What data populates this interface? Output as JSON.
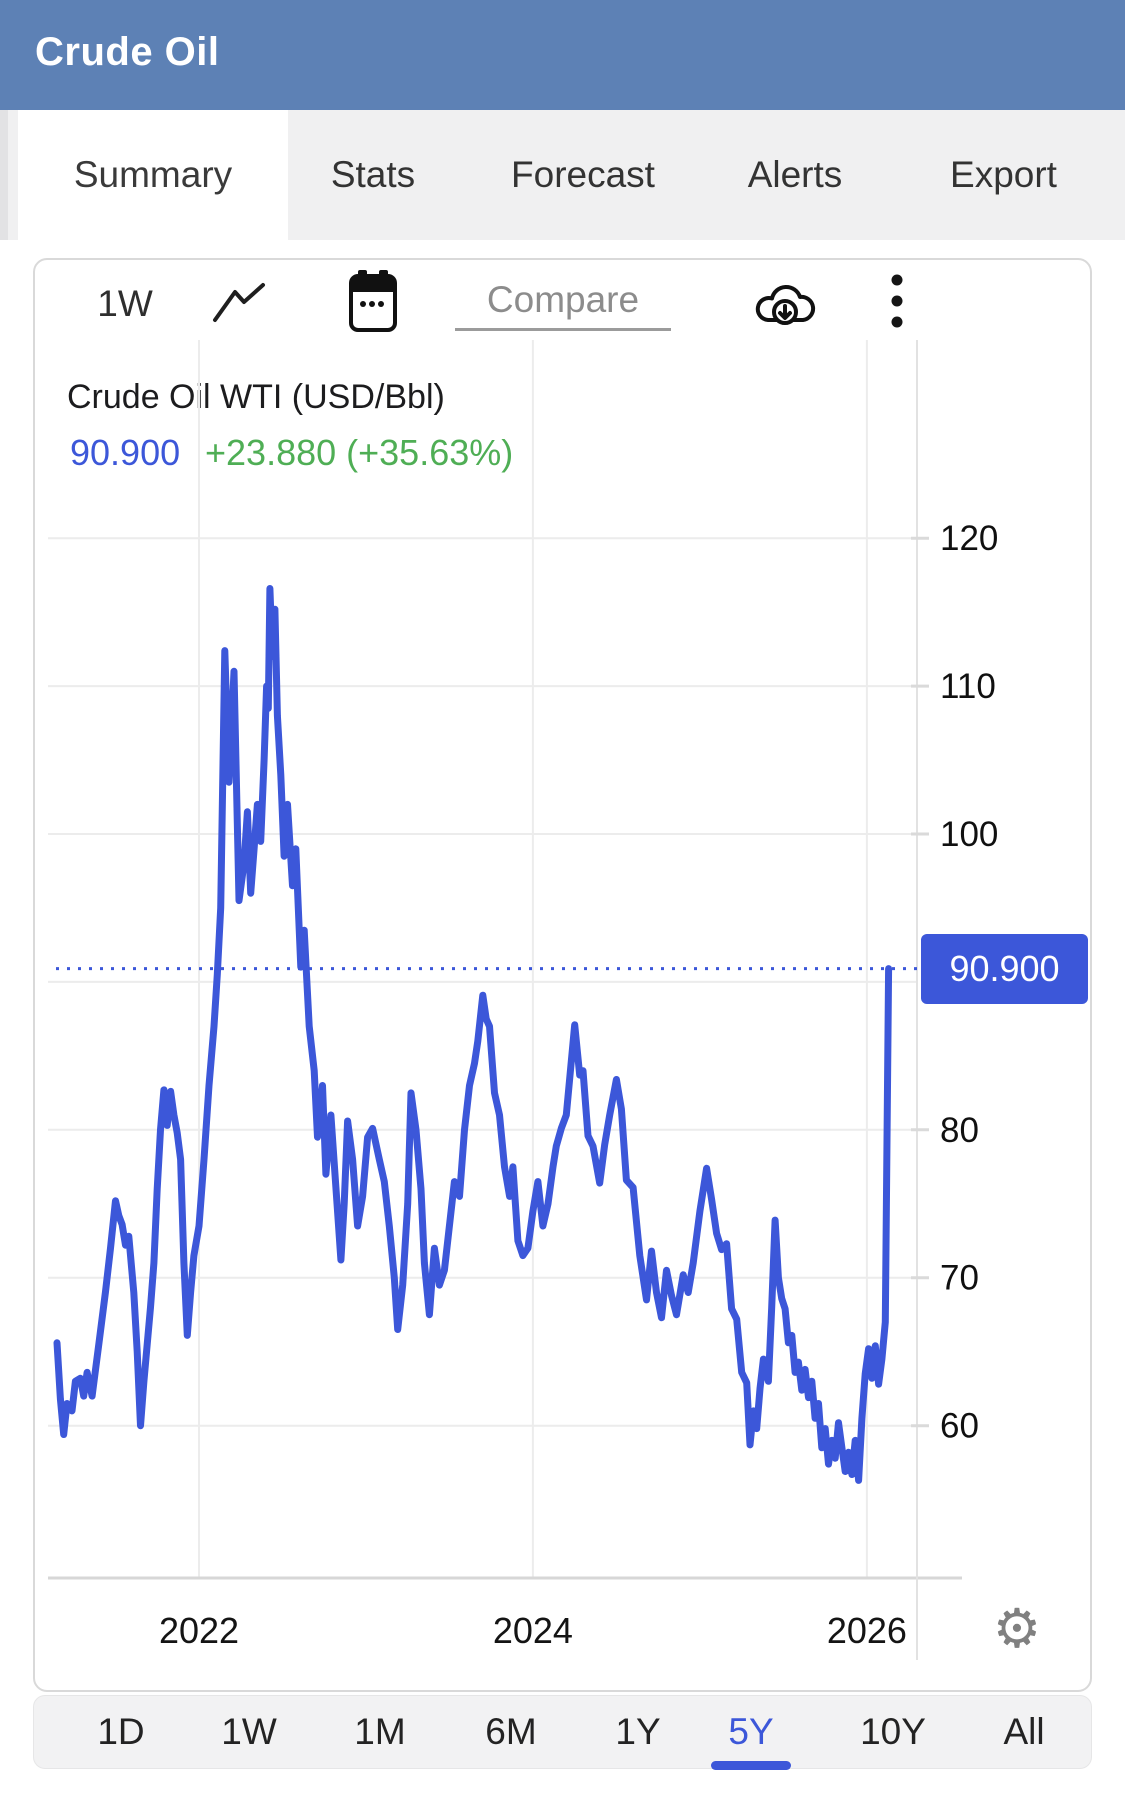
{
  "header": {
    "title": "Crude Oil",
    "bg_color": "#5d81b5"
  },
  "tabs": {
    "items": [
      {
        "label": "Summary",
        "active": true
      },
      {
        "label": "Stats",
        "active": false
      },
      {
        "label": "Forecast",
        "active": false
      },
      {
        "label": "Alerts",
        "active": false
      },
      {
        "label": "Export",
        "active": false
      }
    ]
  },
  "toolbar": {
    "interval": "1W",
    "compare_label": "Compare",
    "icons": [
      "line-chart-icon",
      "calendar-icon",
      "cloud-download-icon",
      "kebab-menu-icon"
    ]
  },
  "quote": {
    "title": "Crude Oil WTI (USD/Bbl)",
    "last": "90.900",
    "change": "+23.880 (+35.63%)",
    "last_color": "#3c57d9",
    "change_color": "#4fae55"
  },
  "chart_data": {
    "type": "line",
    "title": "Crude Oil WTI (USD/Bbl)",
    "line_color": "#3c57d9",
    "grid": "on",
    "legend": "none",
    "xlim": [
      2021.096,
      2026.3
    ],
    "ylim": [
      49.7,
      133.4
    ],
    "x_ticks": [
      2022,
      2024,
      2026
    ],
    "y_ticks": [
      120,
      110,
      100,
      80,
      70,
      60
    ],
    "y_gridlines": [
      120,
      110,
      100,
      90,
      80,
      70,
      60
    ],
    "last_value": 90.9,
    "last_label": "90.900",
    "change_value": 23.88,
    "change_pct": 35.63,
    "series": [
      {
        "name": "Crude Oil WTI",
        "x": [
          2021.15,
          2021.17,
          2021.19,
          2021.21,
          2021.24,
          2021.26,
          2021.29,
          2021.31,
          2021.33,
          2021.36,
          2021.4,
          2021.44,
          2021.47,
          2021.5,
          2021.52,
          2021.54,
          2021.56,
          2021.58,
          2021.61,
          2021.63,
          2021.65,
          2021.67,
          2021.69,
          2021.71,
          2021.73,
          2021.75,
          2021.77,
          2021.79,
          2021.81,
          2021.83,
          2021.85,
          2021.87,
          2021.89,
          2021.91,
          2021.93,
          2021.95,
          2021.97,
          2022.0,
          2022.03,
          2022.06,
          2022.09,
          2022.11,
          2022.13,
          2022.155,
          2022.18,
          2022.21,
          2022.24,
          2022.27,
          2022.29,
          2022.31,
          2022.33,
          2022.35,
          2022.37,
          2022.39,
          2022.405,
          2022.415,
          2022.425,
          2022.44,
          2022.455,
          2022.47,
          2022.49,
          2022.51,
          2022.53,
          2022.56,
          2022.58,
          2022.61,
          2022.63,
          2022.66,
          2022.69,
          2022.71,
          2022.74,
          2022.76,
          2022.79,
          2022.82,
          2022.85,
          2022.87,
          2022.89,
          2022.92,
          2022.95,
          2022.98,
          2023.01,
          2023.04,
          2023.08,
          2023.11,
          2023.14,
          2023.17,
          2023.19,
          2023.22,
          2023.25,
          2023.27,
          2023.3,
          2023.33,
          2023.35,
          2023.38,
          2023.41,
          2023.44,
          2023.47,
          2023.5,
          2023.53,
          2023.56,
          2023.59,
          2023.62,
          2023.65,
          2023.67,
          2023.7,
          2023.72,
          2023.74,
          2023.77,
          2023.8,
          2023.83,
          2023.86,
          2023.88,
          2023.91,
          2023.94,
          2023.97,
          2024.0,
          2024.03,
          2024.06,
          2024.09,
          2024.12,
          2024.14,
          2024.17,
          2024.2,
          2024.25,
          2024.28,
          2024.3,
          2024.33,
          2024.36,
          2024.4,
          2024.43,
          2024.46,
          2024.5,
          2024.53,
          2024.56,
          2024.6,
          2024.64,
          2024.68,
          2024.71,
          2024.74,
          2024.77,
          2024.8,
          2024.83,
          2024.86,
          2024.9,
          2024.93,
          2024.96,
          2025.0,
          2025.04,
          2025.07,
          2025.1,
          2025.13,
          2025.16,
          2025.19,
          2025.22,
          2025.25,
          2025.28,
          2025.3,
          2025.32,
          2025.34,
          2025.36,
          2025.38,
          2025.41,
          2025.43,
          2025.45,
          2025.47,
          2025.49,
          2025.51,
          2025.53,
          2025.55,
          2025.57,
          2025.59,
          2025.61,
          2025.63,
          2025.65,
          2025.67,
          2025.69,
          2025.71,
          2025.73,
          2025.75,
          2025.77,
          2025.79,
          2025.81,
          2025.83,
          2025.85,
          2025.87,
          2025.89,
          2025.91,
          2025.93,
          2025.95,
          2025.97,
          2025.99,
          2026.01,
          2026.03,
          2026.05,
          2026.07,
          2026.09,
          2026.11,
          2026.13
        ],
        "values": [
          65.6,
          61.8,
          59.4,
          61.5,
          61.0,
          63.0,
          63.2,
          62.0,
          63.6,
          62.0,
          65.5,
          69.0,
          72.0,
          75.2,
          74.2,
          73.6,
          72.2,
          72.8,
          69.0,
          65.0,
          60.0,
          63.0,
          65.5,
          68.0,
          71.0,
          76.0,
          80.0,
          82.7,
          80.3,
          82.6,
          81.0,
          79.8,
          78.0,
          71.0,
          66.1,
          69.0,
          71.5,
          73.5,
          78.0,
          83.0,
          87.0,
          90.5,
          95.0,
          112.4,
          103.5,
          111.0,
          95.5,
          98.0,
          101.5,
          96.0,
          99.0,
          102.0,
          99.5,
          105.0,
          110.0,
          108.5,
          116.6,
          112.0,
          115.2,
          108.0,
          104.0,
          98.5,
          102.0,
          96.5,
          99.0,
          91.0,
          93.5,
          87.0,
          84.0,
          79.5,
          83.0,
          77.0,
          81.0,
          76.1,
          71.2,
          75.0,
          80.6,
          78.0,
          73.5,
          75.5,
          79.5,
          80.1,
          78.0,
          76.5,
          73.5,
          70.0,
          66.5,
          69.5,
          75.0,
          82.5,
          80.0,
          76.0,
          71.0,
          67.5,
          72.0,
          69.5,
          70.5,
          73.5,
          76.5,
          75.5,
          80.0,
          83.0,
          84.5,
          86.0,
          89.1,
          87.5,
          87.0,
          82.5,
          81.0,
          77.5,
          75.5,
          77.5,
          72.5,
          71.5,
          72.0,
          74.5,
          76.5,
          73.5,
          75.0,
          77.5,
          78.9,
          80.1,
          81.0,
          87.1,
          83.7,
          84.0,
          79.6,
          78.9,
          76.4,
          79.0,
          81.0,
          83.4,
          81.4,
          76.6,
          76.1,
          71.5,
          68.5,
          71.8,
          69.0,
          67.3,
          70.5,
          68.8,
          67.5,
          70.2,
          69.0,
          71.0,
          74.5,
          77.4,
          75.3,
          73.0,
          71.9,
          72.3,
          67.9,
          67.2,
          63.6,
          62.9,
          58.7,
          61.0,
          59.8,
          62.5,
          64.5,
          63.0,
          68.0,
          73.9,
          70.0,
          68.6,
          67.9,
          65.6,
          66.1,
          63.6,
          64.3,
          62.4,
          63.8,
          61.9,
          63.0,
          60.5,
          61.5,
          58.5,
          59.8,
          57.4,
          59.0,
          57.8,
          60.2,
          58.5,
          56.9,
          58.2,
          56.7,
          59.0,
          56.3,
          60.5,
          63.5,
          65.2,
          63.2,
          65.4,
          62.8,
          64.5,
          67.0,
          90.9
        ]
      }
    ]
  },
  "range_bar": {
    "items": [
      {
        "label": "1D",
        "active": false
      },
      {
        "label": "1W",
        "active": false
      },
      {
        "label": "1M",
        "active": false
      },
      {
        "label": "6M",
        "active": false
      },
      {
        "label": "1Y",
        "active": false
      },
      {
        "label": "5Y",
        "active": true
      },
      {
        "label": "10Y",
        "active": false
      },
      {
        "label": "All",
        "active": false
      }
    ],
    "active_color": "#3c57d9"
  },
  "footer": {
    "settings_icon": "gear-icon"
  }
}
